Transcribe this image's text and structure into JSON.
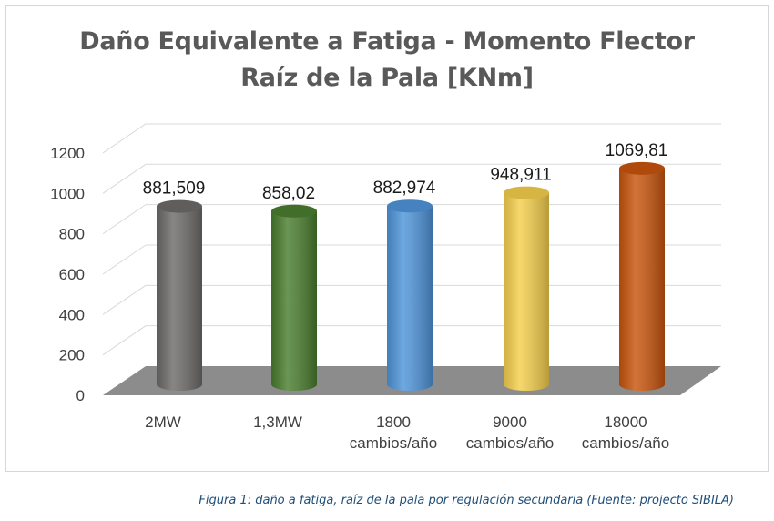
{
  "chart_data": {
    "type": "bar",
    "title_lines": [
      "Daño Equivalente a Fatiga - Momento Flector",
      "Raíz de la Pala [KNm]"
    ],
    "categories": [
      [
        "2MW"
      ],
      [
        "1,3MW"
      ],
      [
        "1800",
        "cambios/año"
      ],
      [
        "9000",
        "cambios/año"
      ],
      [
        "18000",
        "cambios/año"
      ]
    ],
    "values": [
      881.509,
      858.02,
      882.974,
      948.911,
      1069.81
    ],
    "data_labels": [
      "881,509",
      "858,02",
      "882,974",
      "948,911",
      "1069,81"
    ],
    "colors": [
      "#6e6a6a",
      "#4a7e2f",
      "#4f95da",
      "#f5cf4d",
      "#c8550e"
    ],
    "y_ticks": [
      "0",
      "200",
      "400",
      "600",
      "800",
      "1000",
      "1200"
    ],
    "ylim": [
      0,
      1200
    ],
    "grid": true,
    "legend": "none",
    "style": "3d-cylinder"
  },
  "caption": "Figura 1: daño a fatiga,  raíz de la pala por regulación secundaria (Fuente: projecto SIBILA)"
}
